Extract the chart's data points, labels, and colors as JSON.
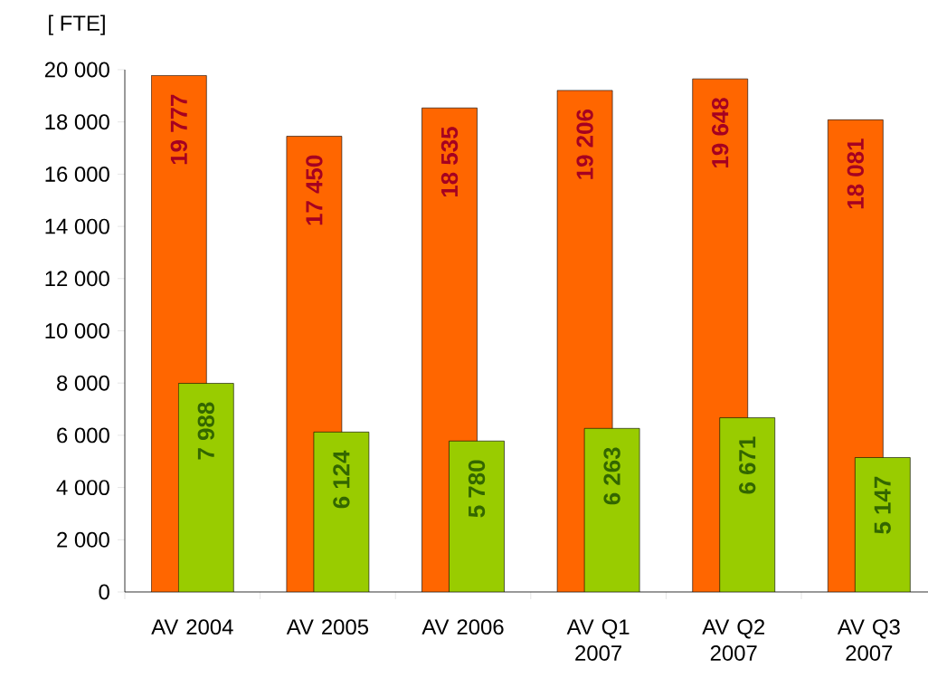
{
  "chart_data": {
    "type": "bar",
    "ylabel": "[ FTE]",
    "categories": [
      "AV 2004",
      "AV 2005",
      "AV 2006",
      "AV Q1 2007",
      "AV Q2 2007",
      "AV Q3 2007"
    ],
    "series": [
      {
        "color": "#ff6600",
        "values": [
          19777,
          17450,
          18535,
          19206,
          19648,
          18081
        ],
        "value_labels": [
          "19 777",
          "17 450",
          "18 535",
          "19 206",
          "19 648",
          "18 081"
        ]
      },
      {
        "color": "#99cc00",
        "values": [
          7988,
          6124,
          5780,
          6263,
          6671,
          5147
        ],
        "value_labels": [
          "7 988",
          "6 124",
          "5 780",
          "6 263",
          "6 671",
          "5 147"
        ]
      }
    ],
    "ylim": [
      0,
      20000
    ],
    "yticks": [
      0,
      {
        "value": 2000,
        "label": "2 000"
      },
      {
        "value": 4000,
        "label": "4 000"
      },
      {
        "value": 6000,
        "label": "6 000"
      },
      {
        "value": 8000,
        "label": "8 000"
      },
      {
        "value": 10000,
        "label": "10 000"
      },
      {
        "value": 12000,
        "label": "12 000"
      },
      {
        "value": 14000,
        "label": "14 000"
      },
      {
        "value": 16000,
        "label": "16 000"
      },
      {
        "value": 18000,
        "label": "18 000"
      },
      {
        "value": 20000,
        "label": "20 000"
      }
    ]
  }
}
